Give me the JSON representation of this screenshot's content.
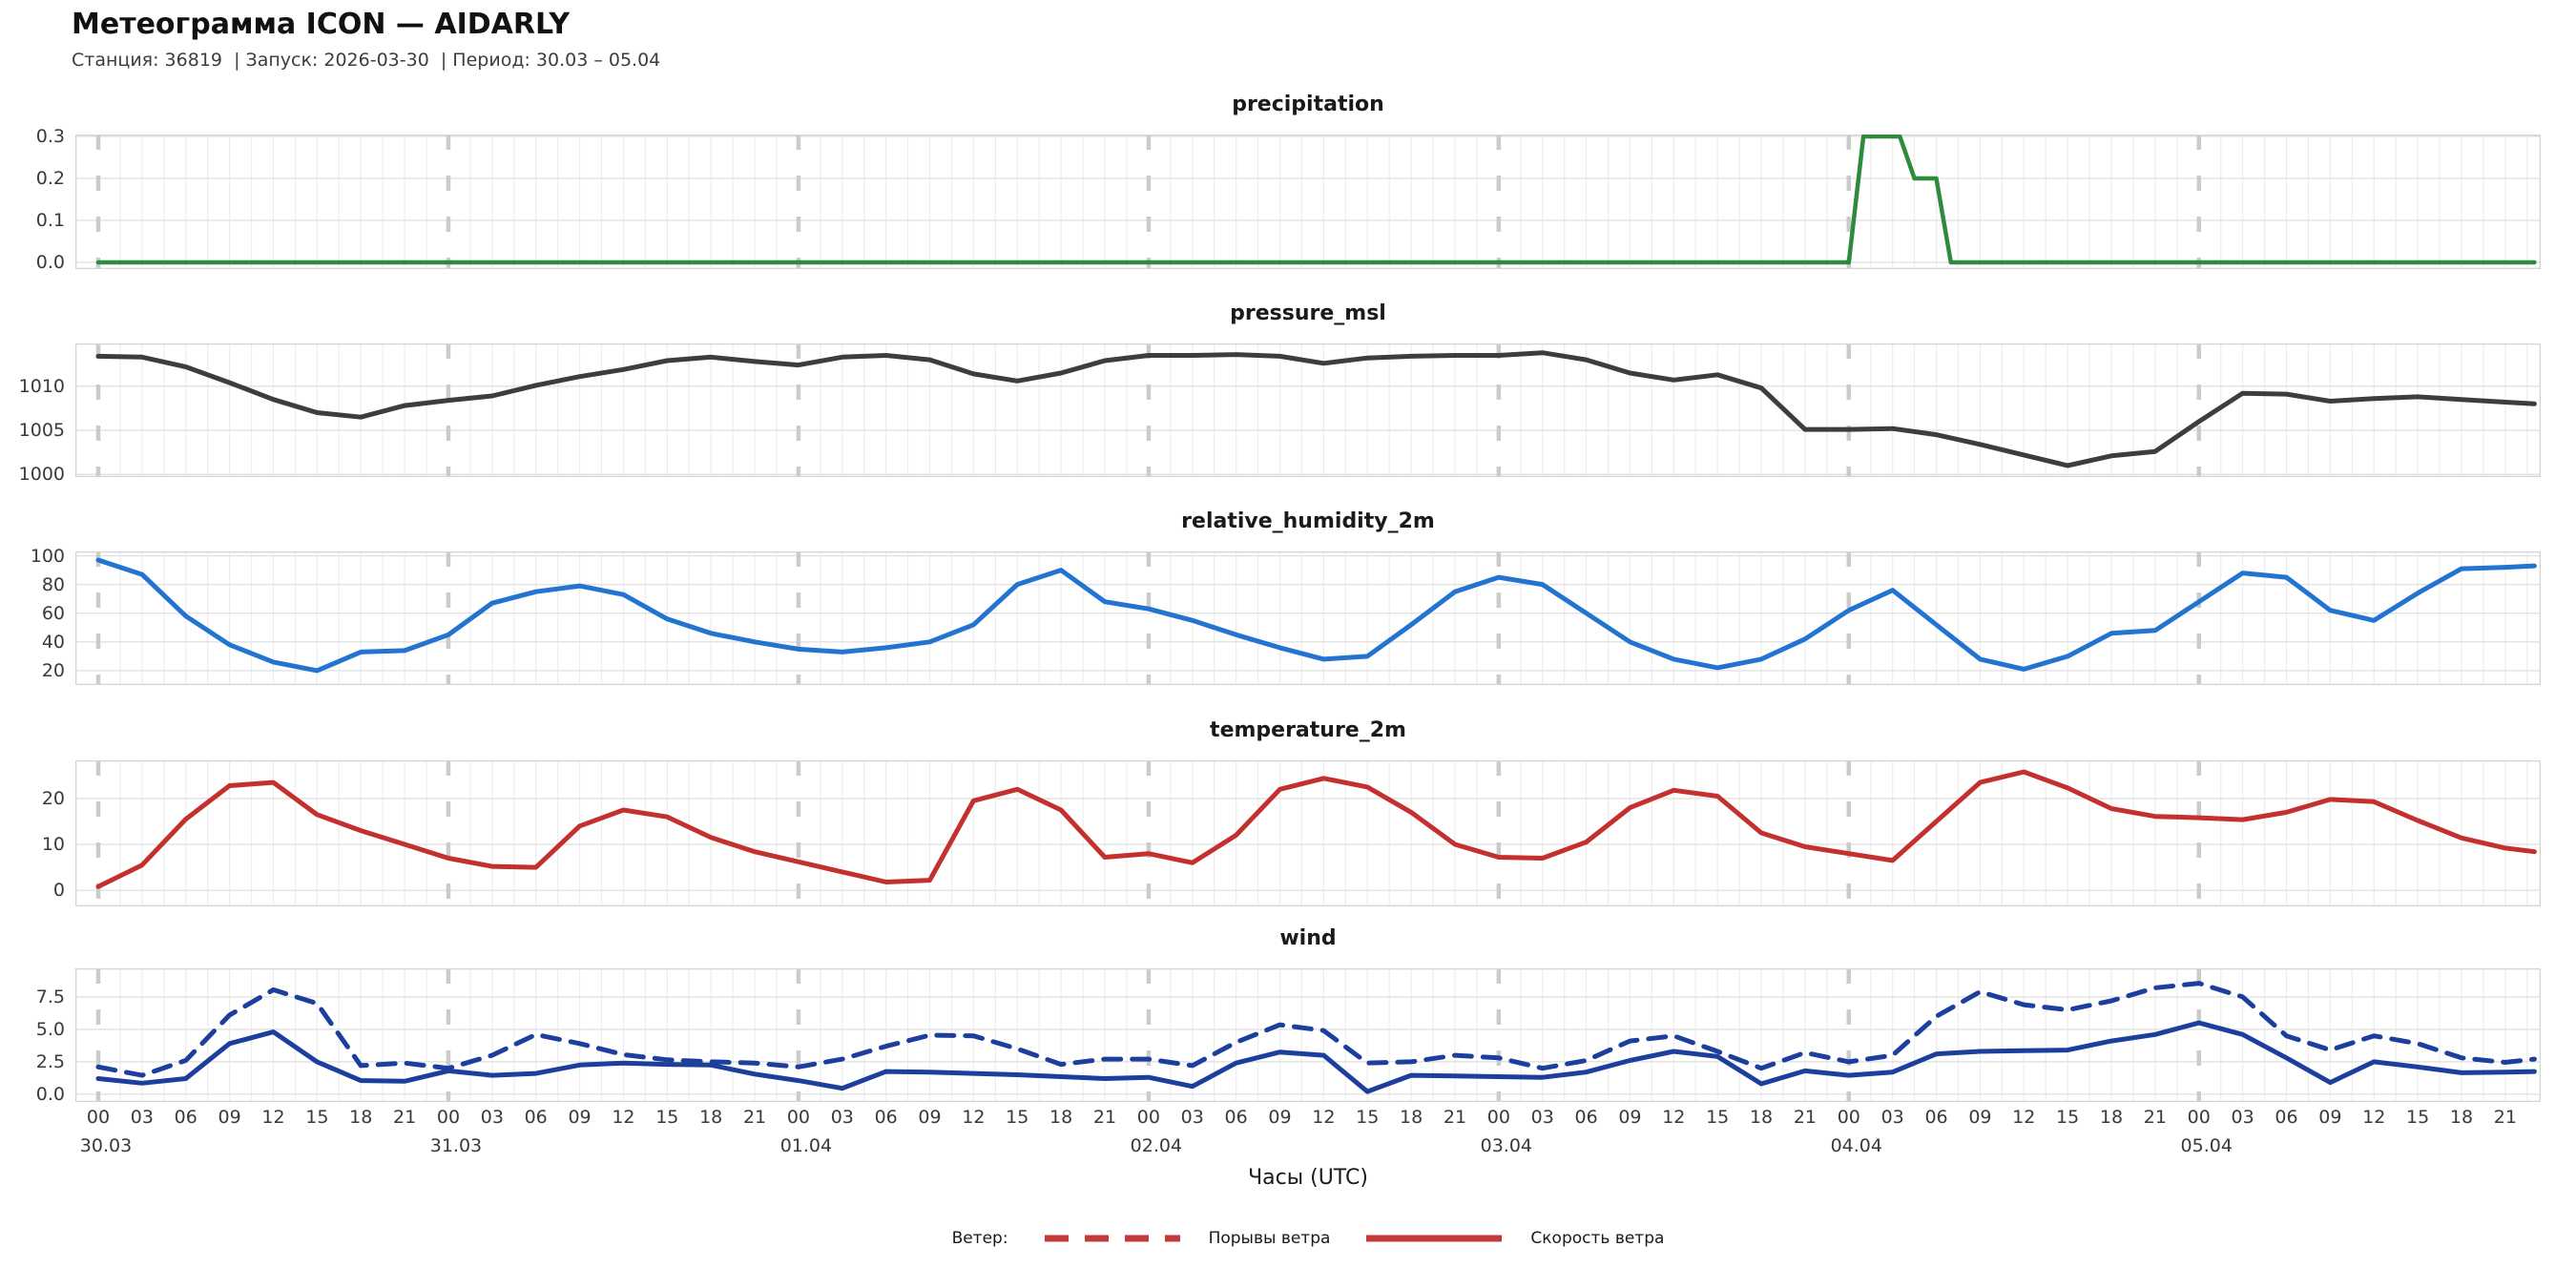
{
  "header": {
    "title": "Метеограмма ICON — AIDARLY",
    "subtitle": "Станция: 36819  | Запуск: 2026-03-30  | Период: 30.03 – 05.04"
  },
  "xaxis": {
    "label": "Часы (UTC)",
    "hour_labels_per_day": [
      "00",
      "03",
      "06",
      "09",
      "12",
      "15",
      "18",
      "21"
    ],
    "days": [
      "30.03",
      "31.03",
      "01.04",
      "02.04",
      "03.04",
      "04.04",
      "05.04"
    ],
    "hours_per_day": 24,
    "total_hours": 167
  },
  "legend": {
    "label": "Ветер:",
    "items": [
      {
        "name": "Порывы ветра",
        "style": "dashed",
        "color": "#c43a3a"
      },
      {
        "name": "Скорость ветра",
        "style": "solid",
        "color": "#c43a3a"
      }
    ]
  },
  "colors": {
    "precipitation": "#2e8b3c",
    "pressure": "#3d3d3d",
    "humidity": "#2274d0",
    "temperature": "#c4302e",
    "wind": "#1c3f9e",
    "grid_minor": "#ededed",
    "grid_major": "#e2e2e2",
    "day_separator": "#cbcbcb",
    "frame": "#d4d4d4"
  },
  "chart_data": [
    {
      "type": "line",
      "title": "precipitation",
      "ylim": [
        -0.016,
        0.3045
      ],
      "ytick_vals": [
        0.0,
        0.1,
        0.2,
        0.3
      ],
      "ytick_labels": [
        "0.0",
        "0.1",
        "0.2",
        "0.3"
      ],
      "series": [
        {
          "name": "precipitation",
          "color": "#2e8b3c",
          "style": "solid",
          "width": 4.5,
          "points": [
            [
              0,
              0
            ],
            [
              120,
              0
            ],
            [
              121,
              0.3
            ],
            [
              123.5,
              0.3
            ],
            [
              124.5,
              0.2
            ],
            [
              126,
              0.2
            ],
            [
              127,
              0
            ],
            [
              167,
              0
            ]
          ]
        }
      ]
    },
    {
      "type": "line",
      "title": "pressure_msl",
      "ylim": [
        999.7,
        1014.85
      ],
      "ytick_vals": [
        1000,
        1005,
        1010
      ],
      "ytick_labels": [
        "1000",
        "1005",
        "1010"
      ],
      "series": [
        {
          "name": "pressure_msl",
          "color": "#3d3d3d",
          "style": "solid",
          "width": 5,
          "step": 3,
          "values": [
            1013.4,
            1013.3,
            1012.2,
            1010.4,
            1008.5,
            1007.0,
            1006.5,
            1007.8,
            1008.4,
            1008.9,
            1010.1,
            1011.1,
            1011.9,
            1012.9,
            1013.3,
            1012.8,
            1012.4,
            1013.3,
            1013.5,
            1013.0,
            1011.4,
            1010.6,
            1011.5,
            1012.9,
            1013.5,
            1013.5,
            1013.6,
            1013.4,
            1012.6,
            1013.2,
            1013.4,
            1013.5,
            1013.5,
            1013.8,
            1013.0,
            1011.5,
            1010.7,
            1011.3,
            1009.8,
            1005.1,
            1005.1,
            1005.2,
            1004.5,
            1003.4,
            1002.2,
            1001.0,
            1002.1,
            1002.6,
            1006.0,
            1009.2,
            1009.1,
            1008.3,
            1008.6,
            1008.8,
            1008.5,
            1008.2,
            1008.0
          ]
        }
      ]
    },
    {
      "type": "line",
      "title": "relative_humidity_2m",
      "ylim": [
        10,
        103
      ],
      "ytick_vals": [
        20,
        40,
        60,
        80,
        100
      ],
      "ytick_labels": [
        "20",
        "40",
        "60",
        "80",
        "100"
      ],
      "series": [
        {
          "name": "relative_humidity_2m",
          "color": "#2274d0",
          "style": "solid",
          "width": 5,
          "step": 3,
          "values": [
            97,
            87,
            58,
            38,
            26,
            20,
            33,
            34,
            45,
            67,
            75,
            79,
            73,
            56,
            46,
            40,
            35,
            33,
            36,
            40,
            52,
            80,
            90,
            68,
            63,
            55,
            45,
            36,
            28,
            30,
            52,
            75,
            85,
            80,
            60,
            40,
            28,
            22,
            28,
            42,
            62,
            76,
            52,
            28,
            21,
            30,
            46,
            48,
            68,
            88,
            85,
            62,
            55,
            74,
            91,
            92,
            93
          ]
        }
      ]
    },
    {
      "type": "line",
      "title": "temperature_2m",
      "ylim": [
        -3.5,
        28.3
      ],
      "ytick_vals": [
        0,
        10,
        20
      ],
      "ytick_labels": [
        "0",
        "10",
        "20"
      ],
      "series": [
        {
          "name": "temperature_2m",
          "color": "#c4302e",
          "style": "solid",
          "width": 5,
          "step": 3,
          "values": [
            0.8,
            5.5,
            15.5,
            22.8,
            23.5,
            16.5,
            13.0,
            10.0,
            7.0,
            5.2,
            5.0,
            14.0,
            17.5,
            16.0,
            11.5,
            8.4,
            6.2,
            4.0,
            1.8,
            2.2,
            19.5,
            22.0,
            17.5,
            7.2,
            8.0,
            6.0,
            12.0,
            22.0,
            24.4,
            22.5,
            17.0,
            10.0,
            7.2,
            7.0,
            10.5,
            18.0,
            21.8,
            20.5,
            12.5,
            9.5,
            8.0,
            6.5,
            15.0,
            23.5,
            25.8,
            22.3,
            17.8,
            16.1,
            15.8,
            15.4,
            17.0,
            19.8,
            19.3,
            15.2,
            11.4,
            9.2,
            8.4
          ]
        }
      ]
    },
    {
      "type": "line",
      "title": "wind",
      "ylim": [
        -0.6,
        9.7
      ],
      "ytick_vals": [
        0.0,
        2.5,
        5.0,
        7.5
      ],
      "ytick_labels": [
        "0.0",
        "2.5",
        "5.0",
        "7.5"
      ],
      "series": [
        {
          "name": "Порывы ветра",
          "color": "#1c3f9e",
          "style": "dashed",
          "width": 5,
          "step": 3,
          "values": [
            2.1,
            1.45,
            2.6,
            6.1,
            8.05,
            7.0,
            2.2,
            2.4,
            2.0,
            3.0,
            4.6,
            3.9,
            3.05,
            2.65,
            2.5,
            2.4,
            2.1,
            2.7,
            3.7,
            4.55,
            4.5,
            3.5,
            2.3,
            2.7,
            2.7,
            2.2,
            4.0,
            5.35,
            4.9,
            2.4,
            2.5,
            3.0,
            2.8,
            2.0,
            2.6,
            4.1,
            4.5,
            3.3,
            2.0,
            3.2,
            2.5,
            3.0,
            6.0,
            7.9,
            6.9,
            6.5,
            7.2,
            8.2,
            8.55,
            7.5,
            4.5,
            3.4,
            4.5,
            3.9,
            2.8,
            2.45,
            2.7
          ]
        },
        {
          "name": "Скорость ветра",
          "color": "#1c3f9e",
          "style": "solid",
          "width": 5,
          "step": 3,
          "values": [
            1.2,
            0.85,
            1.2,
            3.9,
            4.8,
            2.5,
            1.05,
            1.0,
            1.8,
            1.45,
            1.6,
            2.25,
            2.4,
            2.3,
            2.25,
            1.55,
            1.05,
            0.45,
            1.75,
            1.7,
            1.6,
            1.5,
            1.35,
            1.2,
            1.3,
            0.6,
            2.4,
            3.25,
            3.0,
            0.2,
            1.45,
            1.4,
            1.35,
            1.3,
            1.7,
            2.6,
            3.3,
            2.9,
            0.8,
            1.8,
            1.45,
            1.7,
            3.1,
            3.3,
            3.35,
            3.4,
            4.1,
            4.6,
            5.5,
            4.6,
            2.8,
            0.9,
            2.5,
            2.1,
            1.65,
            1.7,
            1.75
          ]
        }
      ]
    }
  ]
}
